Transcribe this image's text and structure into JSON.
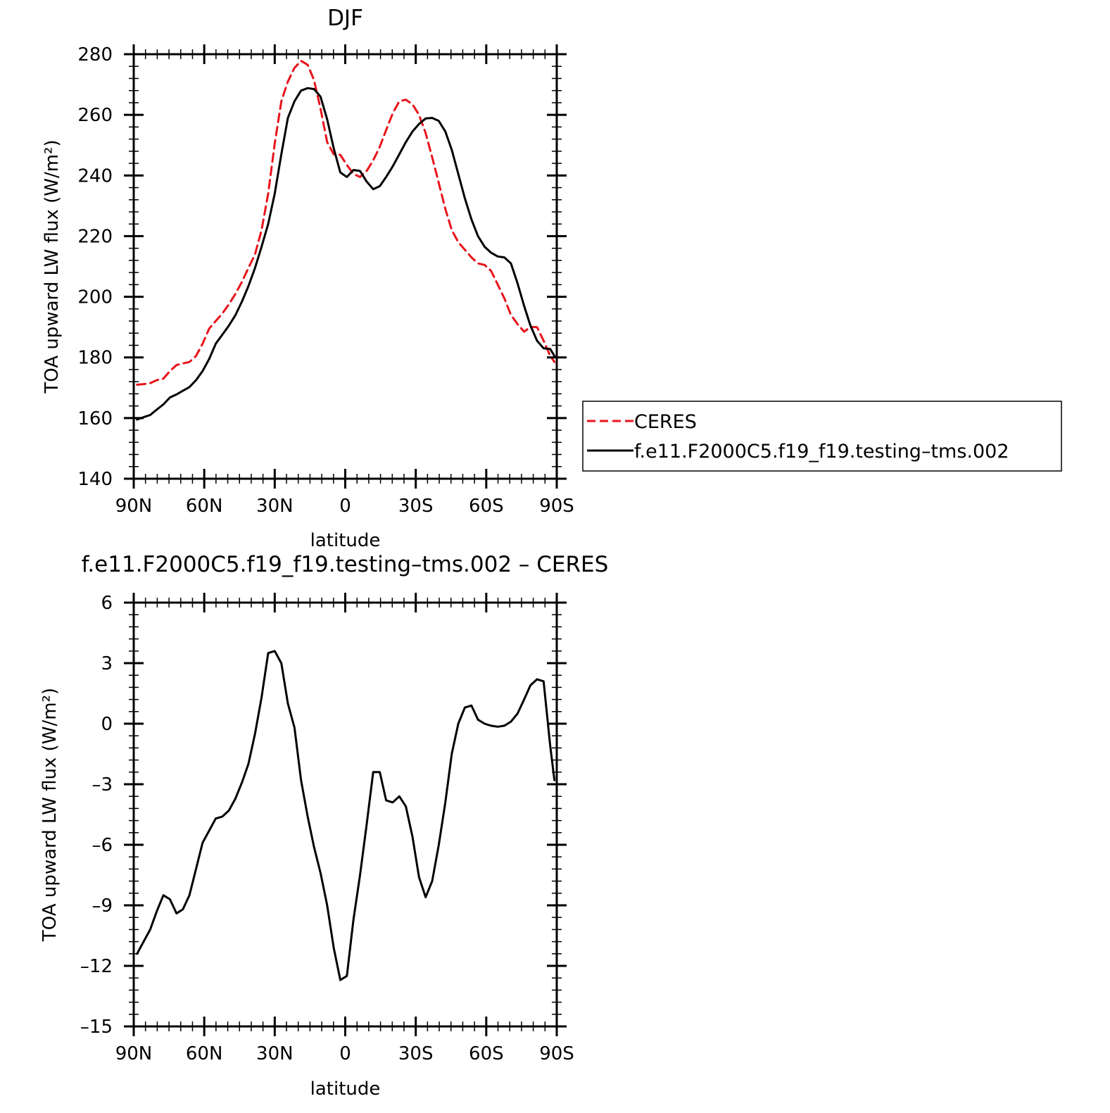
{
  "chart_data": [
    {
      "id": "top",
      "type": "line",
      "title": "DJF",
      "xlabel": "latitude",
      "ylabel": "TOA upward LW flux (W/m²)",
      "xlim": [
        -90,
        90
      ],
      "ylim": [
        140,
        280
      ],
      "xticks": [
        {
          "value": -90,
          "label": "90N"
        },
        {
          "value": -60,
          "label": "60N"
        },
        {
          "value": -30,
          "label": "30N"
        },
        {
          "value": 0,
          "label": "0"
        },
        {
          "value": 30,
          "label": "30S"
        },
        {
          "value": 60,
          "label": "60S"
        },
        {
          "value": 90,
          "label": "90S"
        }
      ],
      "yticks": [
        {
          "value": 140,
          "label": "140"
        },
        {
          "value": 160,
          "label": "160"
        },
        {
          "value": 180,
          "label": "180"
        },
        {
          "value": 200,
          "label": "200"
        },
        {
          "value": 220,
          "label": "220"
        },
        {
          "value": 240,
          "label": "240"
        },
        {
          "value": 260,
          "label": "260"
        },
        {
          "value": 280,
          "label": "280"
        }
      ],
      "grid": false,
      "legend": {
        "placement": "right"
      },
      "series": [
        {
          "name": "CERES",
          "color": "#e8141c",
          "dash": "dashed",
          "x": [
            -88.6,
            -85.8,
            -83.0,
            -80.2,
            -77.4,
            -74.6,
            -71.8,
            -69.1,
            -66.3,
            -63.5,
            -60.7,
            -57.9,
            -55.1,
            -52.3,
            -49.5,
            -46.7,
            -43.9,
            -41.2,
            -38.4,
            -35.6,
            -32.8,
            -30.0,
            -27.2,
            -24.4,
            -21.6,
            -18.8,
            -16.0,
            -13.3,
            -10.5,
            -7.7,
            -4.9,
            -2.1,
            0.7,
            3.5,
            6.3,
            9.1,
            11.9,
            14.7,
            17.4,
            20.2,
            23.0,
            25.8,
            28.6,
            31.4,
            34.2,
            37.0,
            39.8,
            42.6,
            45.3,
            48.1,
            50.9,
            53.7,
            56.5,
            59.3,
            62.1,
            64.9,
            67.7,
            70.5,
            73.3,
            76.1,
            78.8,
            81.6,
            84.4,
            87.2,
            89.0
          ],
          "y": [
            171.0,
            171.2,
            171.5,
            172.5,
            173.0,
            175.5,
            177.5,
            178.0,
            178.5,
            180.5,
            184.5,
            189.5,
            192.0,
            194.5,
            197.5,
            201.0,
            205.0,
            209.5,
            214.0,
            222.0,
            234.0,
            250.5,
            264.5,
            271.0,
            275.5,
            277.8,
            276.5,
            271.5,
            262.0,
            251.0,
            247.0,
            246.8,
            243.5,
            240.5,
            239.5,
            241.5,
            245.0,
            249.5,
            255.0,
            260.5,
            264.5,
            265.0,
            263.5,
            260.0,
            254.0,
            246.0,
            237.5,
            229.0,
            222.0,
            218.0,
            215.5,
            213.0,
            211.0,
            210.5,
            208.5,
            204.0,
            199.5,
            194.0,
            191.0,
            188.5,
            190.0,
            190.0,
            185.5,
            180.5,
            178.5
          ]
        },
        {
          "name": "f.e11.F2000C5.f19_f19.testing–tms.002",
          "color": "#000000",
          "dash": "solid",
          "x": [
            -88.6,
            -85.8,
            -83.0,
            -80.2,
            -77.4,
            -74.6,
            -71.8,
            -69.1,
            -66.3,
            -63.5,
            -60.7,
            -57.9,
            -55.1,
            -52.3,
            -49.5,
            -46.7,
            -43.9,
            -41.2,
            -38.4,
            -35.6,
            -32.8,
            -30.0,
            -27.2,
            -24.4,
            -21.6,
            -18.8,
            -16.0,
            -13.3,
            -10.5,
            -7.7,
            -4.9,
            -2.1,
            0.7,
            3.5,
            6.3,
            9.1,
            11.9,
            14.7,
            17.4,
            20.2,
            23.0,
            25.8,
            28.6,
            31.4,
            34.2,
            37.0,
            39.8,
            42.6,
            45.3,
            48.1,
            50.9,
            53.7,
            56.5,
            59.3,
            62.1,
            64.9,
            67.7,
            70.5,
            73.3,
            76.1,
            78.8,
            81.6,
            84.4,
            87.2,
            89.0
          ],
          "y": [
            159.5,
            160.3,
            161.0,
            162.8,
            164.5,
            166.8,
            167.8,
            169.0,
            170.2,
            172.5,
            175.5,
            179.5,
            184.5,
            187.5,
            190.5,
            194.0,
            198.5,
            203.5,
            209.5,
            216.5,
            224.0,
            234.0,
            247.0,
            259.0,
            264.5,
            268.0,
            268.8,
            268.5,
            266.0,
            258.5,
            249.0,
            241.0,
            239.5,
            241.8,
            241.5,
            238.0,
            235.5,
            236.5,
            239.5,
            243.0,
            247.0,
            251.0,
            254.5,
            257.0,
            258.8,
            259.0,
            258.0,
            254.5,
            248.5,
            240.5,
            232.5,
            225.5,
            220.0,
            216.5,
            214.5,
            213.3,
            213.0,
            211.0,
            204.5,
            197.0,
            190.5,
            185.5,
            183.0,
            182.8,
            180.5
          ]
        }
      ]
    },
    {
      "id": "bottom",
      "type": "line",
      "title": "f.e11.F2000C5.f19_f19.testing–tms.002 – CERES",
      "xlabel": "latitude",
      "ylabel": "TOA upward LW flux (W/m²)",
      "xlim": [
        -90,
        90
      ],
      "ylim": [
        -15,
        6
      ],
      "xticks": [
        {
          "value": -90,
          "label": "90N"
        },
        {
          "value": -60,
          "label": "60N"
        },
        {
          "value": -30,
          "label": "30N"
        },
        {
          "value": 0,
          "label": "0"
        },
        {
          "value": 30,
          "label": "30S"
        },
        {
          "value": 60,
          "label": "60S"
        },
        {
          "value": 90,
          "label": "90S"
        }
      ],
      "yticks": [
        {
          "value": -15,
          "label": "–15"
        },
        {
          "value": -12,
          "label": "–12"
        },
        {
          "value": -9,
          "label": "–9"
        },
        {
          "value": -6,
          "label": "–6"
        },
        {
          "value": -3,
          "label": "–3"
        },
        {
          "value": 0,
          "label": "0"
        },
        {
          "value": 3,
          "label": "3"
        },
        {
          "value": 6,
          "label": "6"
        }
      ],
      "grid": false,
      "series": [
        {
          "color": "#000000",
          "dash": "solid",
          "x": [
            -88.6,
            -85.8,
            -83.0,
            -80.2,
            -77.4,
            -74.6,
            -71.8,
            -69.1,
            -66.3,
            -63.5,
            -60.7,
            -57.9,
            -55.1,
            -52.3,
            -49.5,
            -46.7,
            -43.9,
            -41.2,
            -38.4,
            -35.6,
            -32.8,
            -30.0,
            -27.2,
            -24.4,
            -21.6,
            -18.8,
            -16.0,
            -13.3,
            -10.5,
            -7.7,
            -4.9,
            -2.1,
            0.7,
            3.5,
            6.3,
            9.1,
            11.9,
            14.7,
            17.4,
            20.2,
            23.0,
            25.8,
            28.6,
            31.4,
            34.2,
            37.0,
            39.8,
            42.6,
            45.3,
            48.1,
            50.9,
            53.7,
            56.5,
            59.3,
            62.1,
            64.9,
            67.7,
            70.5,
            73.3,
            76.1,
            78.8,
            81.6,
            84.4,
            87.2,
            89.0
          ],
          "y": [
            -11.4,
            -10.8,
            -10.2,
            -9.3,
            -8.5,
            -8.7,
            -9.4,
            -9.2,
            -8.5,
            -7.2,
            -5.9,
            -5.3,
            -4.7,
            -4.6,
            -4.3,
            -3.7,
            -2.9,
            -2.0,
            -0.5,
            1.3,
            3.5,
            3.6,
            3.0,
            1.0,
            -0.2,
            -2.8,
            -4.6,
            -6.1,
            -7.4,
            -9.0,
            -11.1,
            -12.7,
            -12.5,
            -9.7,
            -7.5,
            -5.0,
            -2.4,
            -2.4,
            -3.8,
            -3.9,
            -3.6,
            -4.1,
            -5.6,
            -7.6,
            -8.6,
            -7.8,
            -6.0,
            -3.9,
            -1.5,
            0.0,
            0.8,
            0.9,
            0.2,
            0.0,
            -0.1,
            -0.15,
            -0.1,
            0.1,
            0.5,
            1.2,
            1.9,
            2.2,
            2.1,
            -1.1,
            -2.8
          ]
        }
      ]
    }
  ]
}
